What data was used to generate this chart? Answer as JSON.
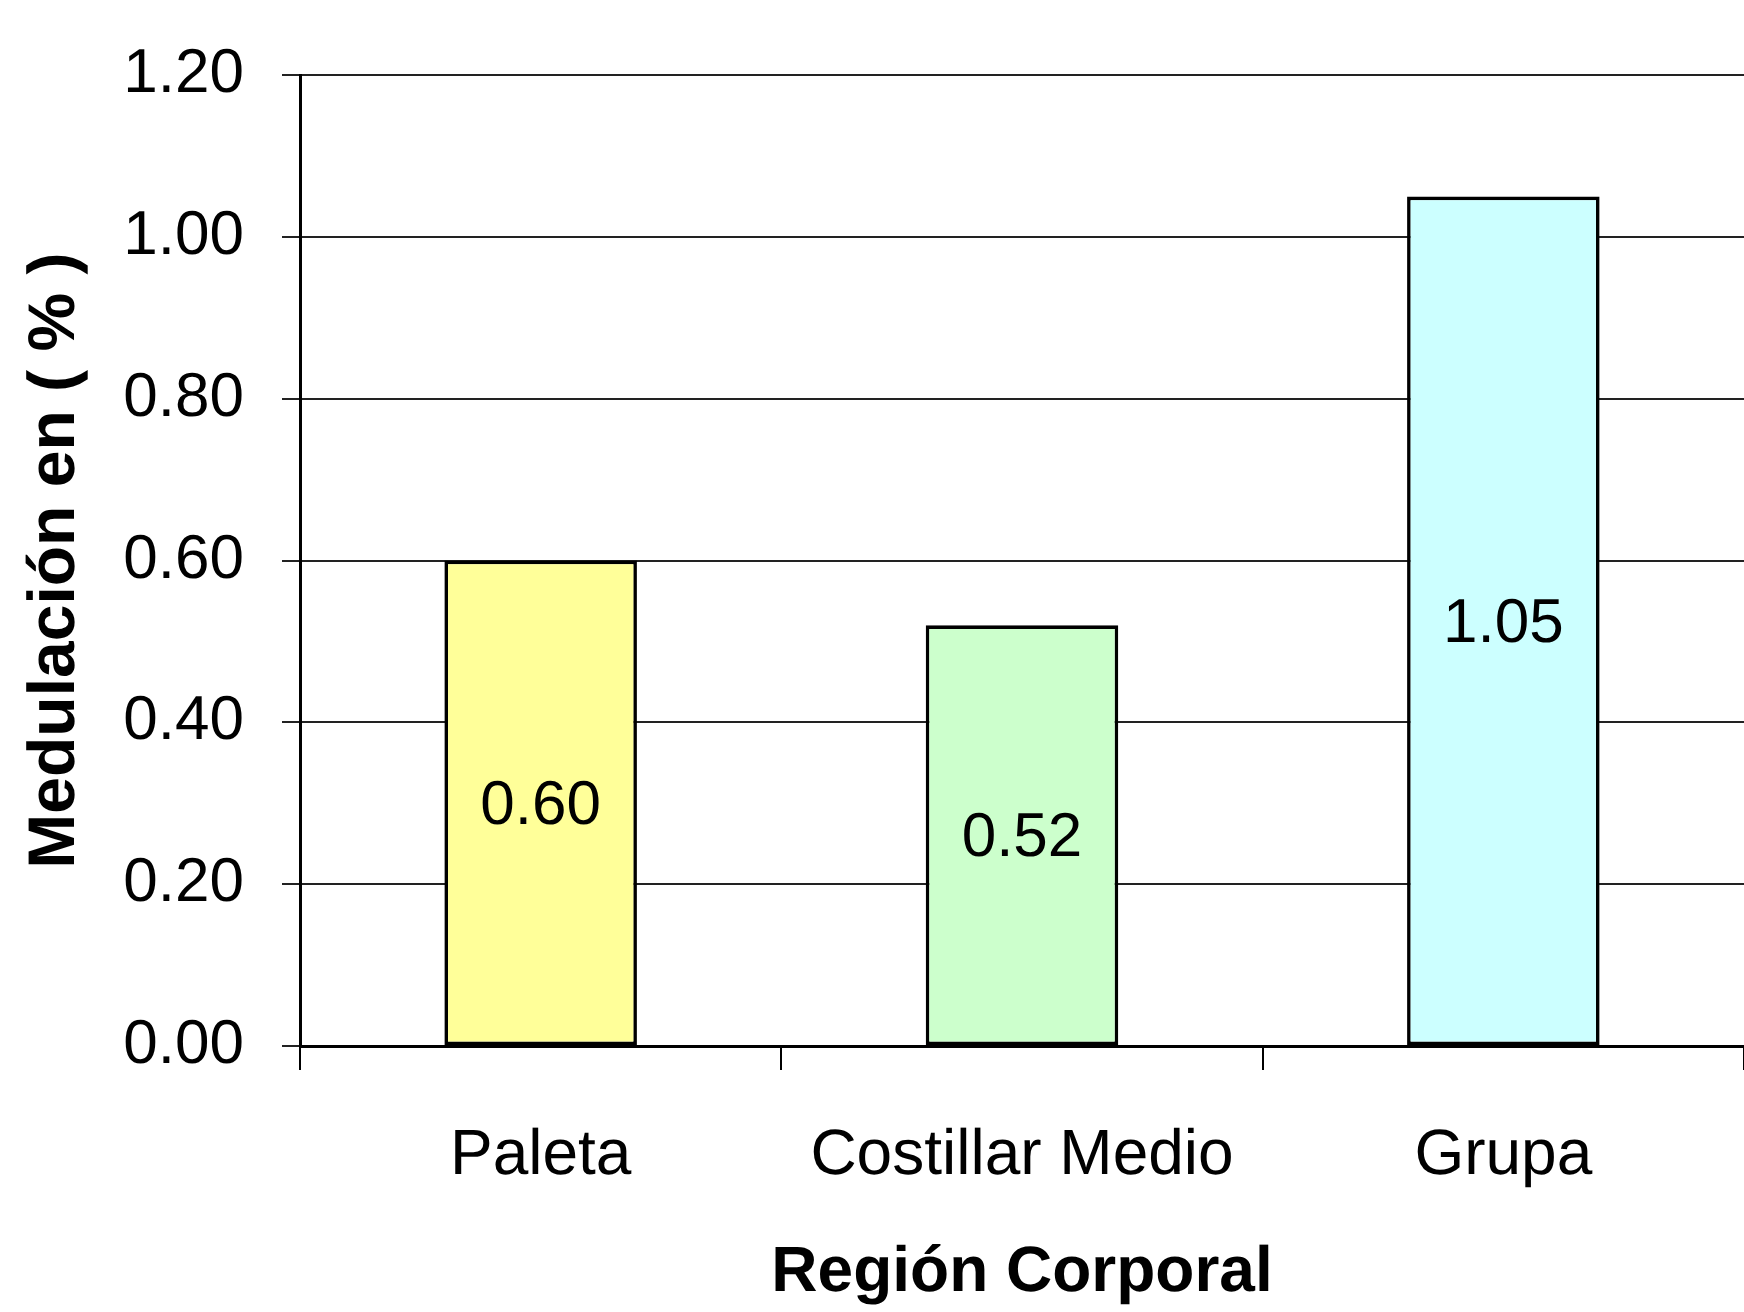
{
  "chart_data": {
    "type": "bar",
    "xlabel": "Región Corporal",
    "ylabel": "Medulación en ( % )",
    "categories": [
      "Paleta",
      "Costillar Medio",
      "Grupa"
    ],
    "values": [
      0.6,
      0.52,
      1.05
    ],
    "colors": [
      "#ffff99",
      "#ccffcc",
      "#ccffff"
    ],
    "value_labels": [
      "0.60",
      "0.52",
      "1.05"
    ],
    "ylim": [
      0,
      1.2
    ],
    "yticks": [
      {
        "value": 0,
        "label": "0.00"
      },
      {
        "value": 0.2,
        "label": "0.20"
      },
      {
        "value": 0.4,
        "label": "0.40"
      },
      {
        "value": 0.6,
        "label": "0.60"
      },
      {
        "value": 0.8,
        "label": "0.80"
      },
      {
        "value": 1.0,
        "label": "1.00"
      },
      {
        "value": 1.2,
        "label": "1.20"
      }
    ],
    "grid": "y"
  }
}
